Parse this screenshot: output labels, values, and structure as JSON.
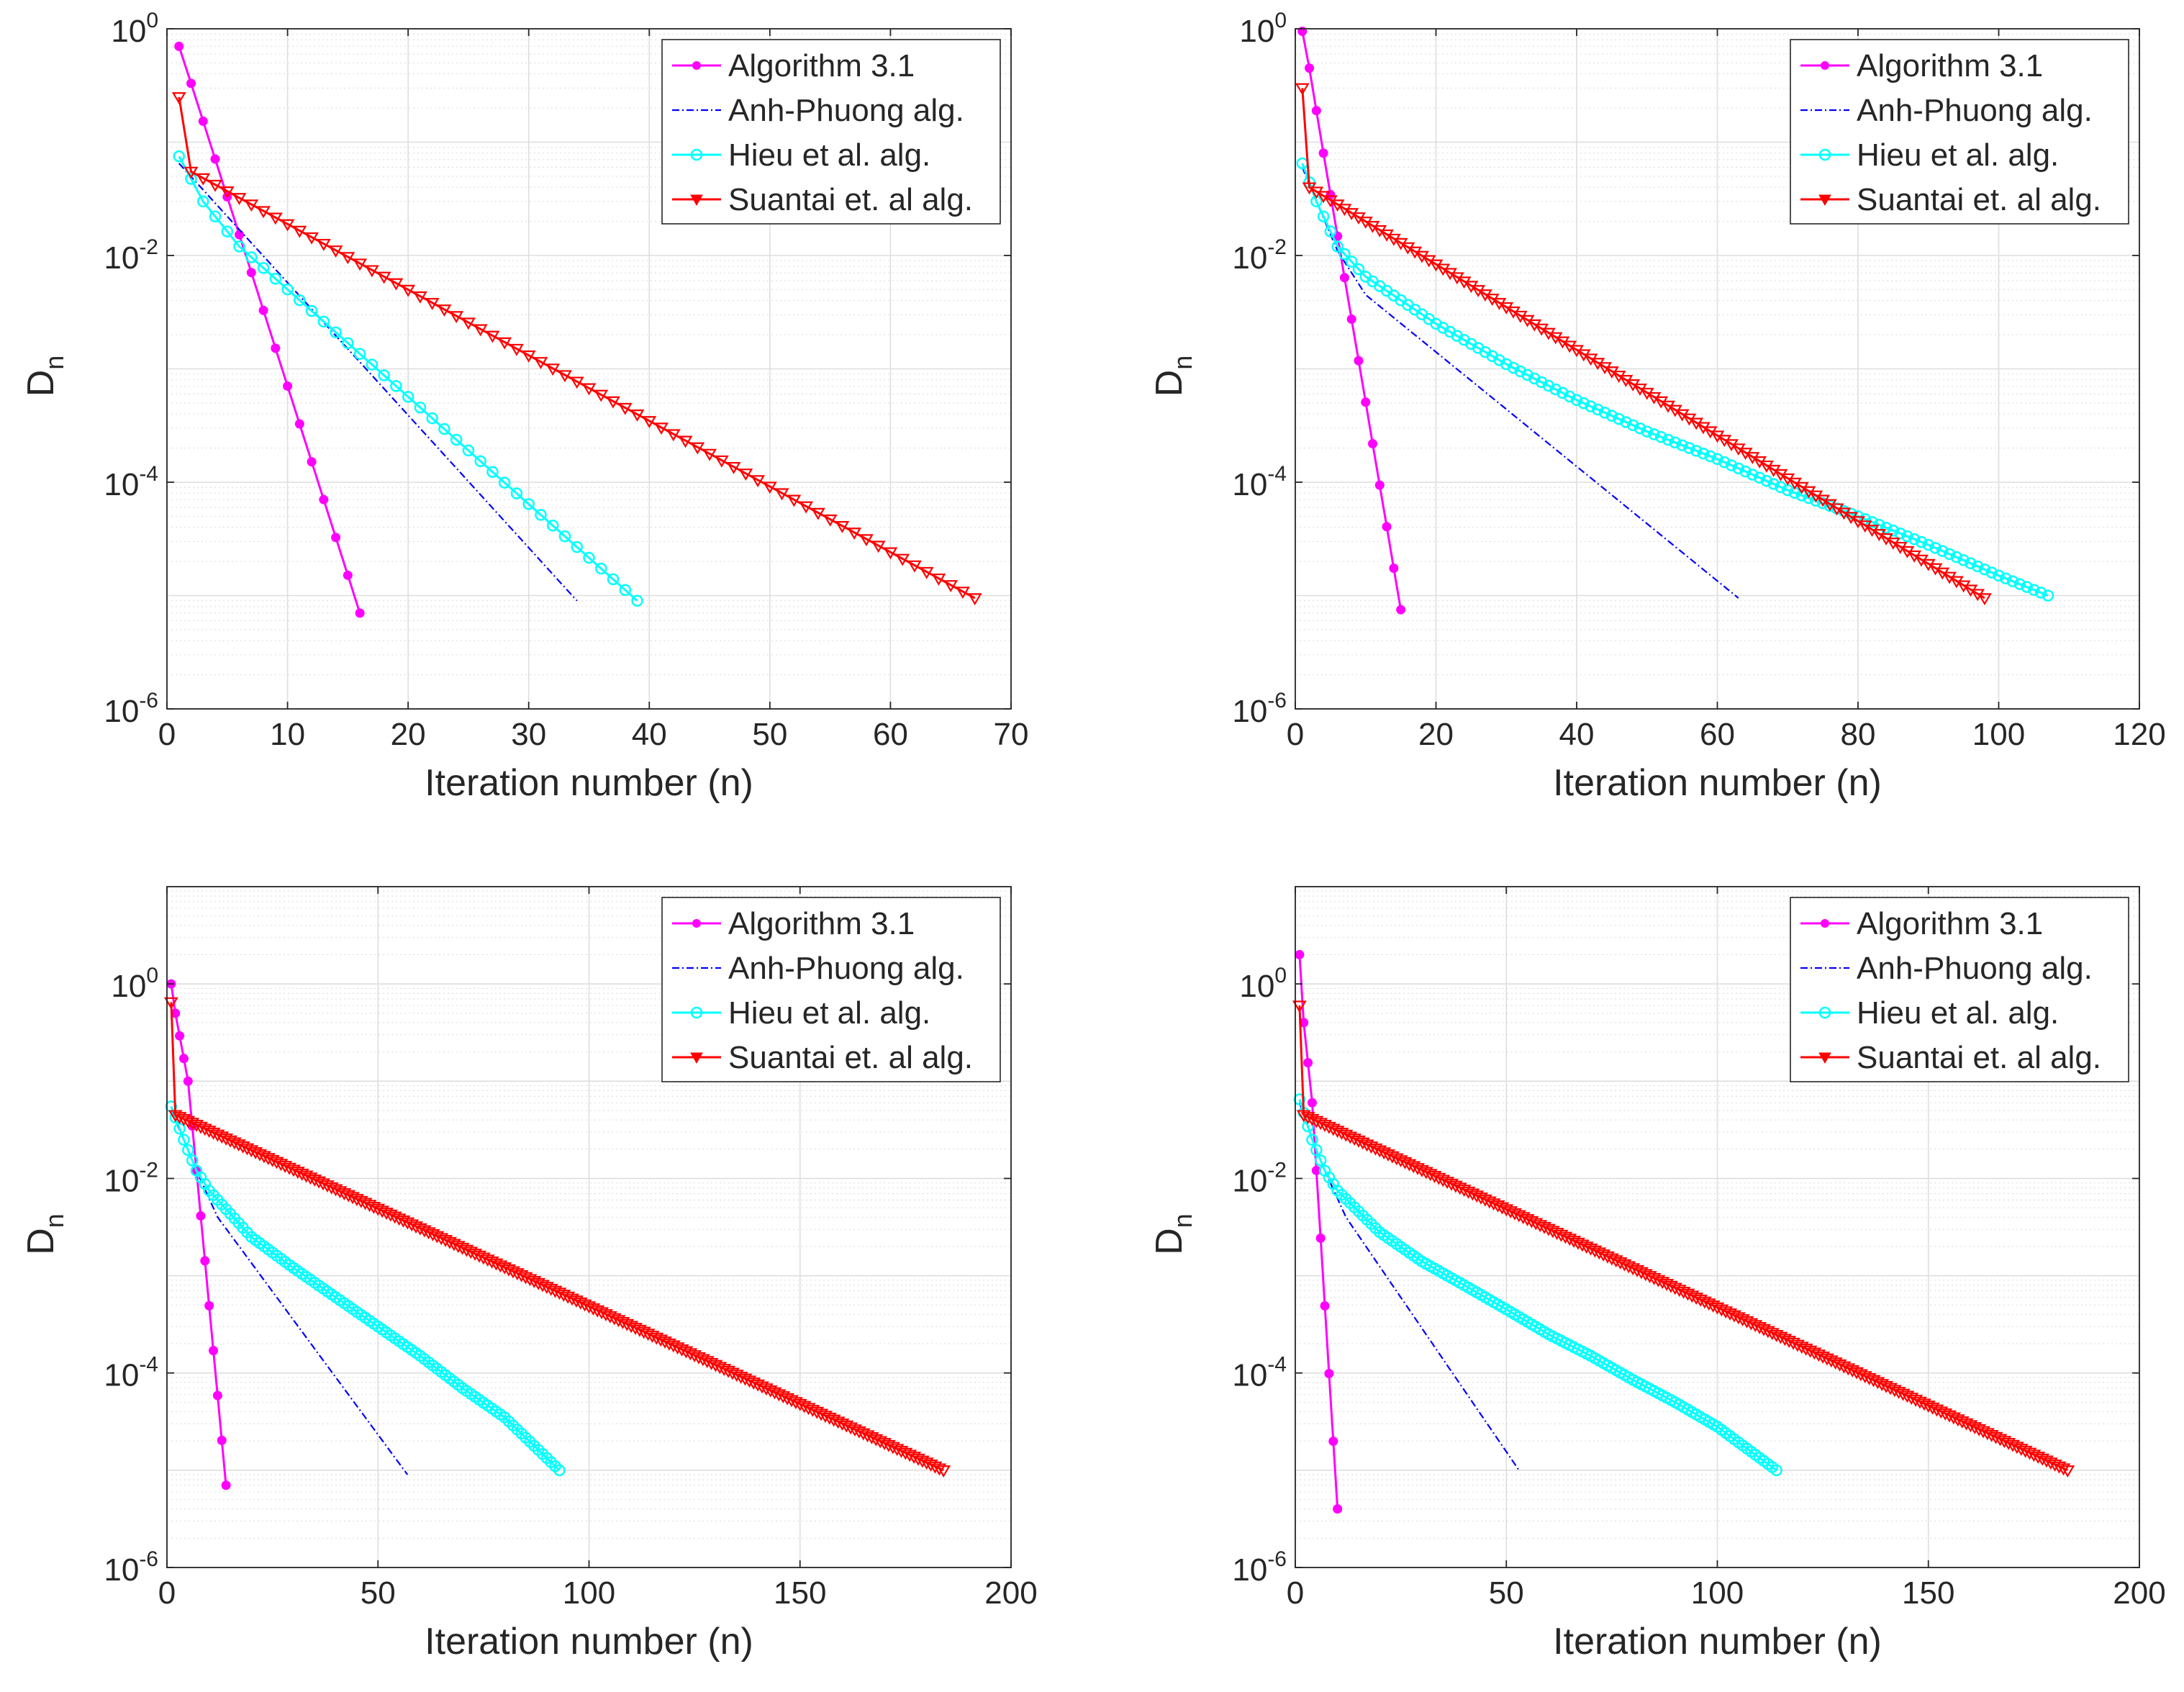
{
  "figure": {
    "panel_count": 4
  },
  "styles": {
    "Algorithm 3.1": {
      "color": "#ff00ff",
      "marker": "dot",
      "line": "solid"
    },
    "Anh-Phuong alg.": {
      "color": "#0000ff",
      "marker": "none",
      "line": "dashdot"
    },
    "Hieu et al. alg.": {
      "color": "#00ffff",
      "marker": "circle",
      "line": "solid"
    },
    "Suantai et. al alg.": {
      "color": "#ff0000",
      "marker": "triangle-down",
      "line": "solid"
    }
  },
  "chart_data": [
    {
      "type": "line",
      "yscale": "log",
      "xlabel": "Iteration number (n)",
      "ylabel": "D",
      "ylabel_sub": "n",
      "xlim": [
        0,
        70
      ],
      "ylim_exp": [
        -6,
        0
      ],
      "xticks": [
        "0",
        "10",
        "20",
        "30",
        "40",
        "50",
        "60",
        "70"
      ],
      "yticks": [
        {
          "base": "10",
          "exp": "0"
        },
        {
          "base": "10",
          "exp": "-2"
        },
        {
          "base": "10",
          "exp": "-4"
        },
        {
          "base": "10",
          "exp": "-6"
        }
      ],
      "ytick_exps": [
        0,
        -2,
        -4,
        -6
      ],
      "grid": true,
      "legend_position": "top-right",
      "series": [
        {
          "name": "Algorithm 3.1",
          "curve": [
            [
              1,
              0.7
            ],
            [
              2,
              0.33
            ],
            [
              16,
              7e-06
            ]
          ]
        },
        {
          "name": "Anh-Phuong alg.",
          "curve": [
            [
              1,
              0.065
            ],
            [
              34,
              9e-06
            ]
          ]
        },
        {
          "name": "Hieu et al. alg.",
          "curve": [
            [
              1,
              0.075
            ],
            [
              3,
              0.03
            ],
            [
              6,
              0.012
            ],
            [
              39,
              9e-06
            ]
          ]
        },
        {
          "name": "Suantai et. al alg.",
          "curve": [
            [
              1,
              0.25
            ],
            [
              2,
              0.055
            ],
            [
              67,
              9.5e-06
            ]
          ]
        }
      ]
    },
    {
      "type": "line",
      "yscale": "log",
      "xlabel": "Iteration number (n)",
      "ylabel": "D",
      "ylabel_sub": "n",
      "xlim": [
        0,
        120
      ],
      "ylim_exp": [
        -6,
        0
      ],
      "xticks": [
        "0",
        "20",
        "40",
        "60",
        "80",
        "100",
        "120"
      ],
      "yticks": [
        {
          "base": "10",
          "exp": "0"
        },
        {
          "base": "10",
          "exp": "-2"
        },
        {
          "base": "10",
          "exp": "-4"
        },
        {
          "base": "10",
          "exp": "-6"
        }
      ],
      "ytick_exps": [
        0,
        -2,
        -4,
        -6
      ],
      "grid": true,
      "legend_position": "top-right",
      "series": [
        {
          "name": "Algorithm 3.1",
          "curve": [
            [
              1,
              0.95
            ],
            [
              2,
              0.45
            ],
            [
              4,
              0.08
            ],
            [
              15,
              7.5e-06
            ]
          ]
        },
        {
          "name": "Anh-Phuong alg.",
          "curve": [
            [
              1,
              0.06
            ],
            [
              3,
              0.03
            ],
            [
              6,
              0.011
            ],
            [
              10,
              0.0045
            ],
            [
              63,
              9.5e-06
            ]
          ]
        },
        {
          "name": "Hieu et al. alg.",
          "curve": [
            [
              1,
              0.065
            ],
            [
              3,
              0.03
            ],
            [
              6,
              0.012
            ],
            [
              10,
              0.0065
            ],
            [
              20,
              0.0025
            ],
            [
              30,
              0.0011
            ],
            [
              40,
              0.00053
            ],
            [
              50,
              0.00028
            ],
            [
              60,
              0.00016
            ],
            [
              70,
              8.5e-05
            ],
            [
              80,
              5e-05
            ],
            [
              90,
              2.8e-05
            ],
            [
              100,
              1.5e-05
            ],
            [
              107,
              1e-05
            ]
          ]
        },
        {
          "name": "Suantai et. al alg.",
          "curve": [
            [
              1,
              0.3
            ],
            [
              2,
              0.04
            ],
            [
              98,
              9.5e-06
            ]
          ]
        }
      ]
    },
    {
      "type": "line",
      "yscale": "log",
      "xlabel": "Iteration number (n)",
      "ylabel": "D",
      "ylabel_sub": "n",
      "xlim": [
        0,
        200
      ],
      "ylim_exp": [
        -6,
        1
      ],
      "xticks": [
        "0",
        "50",
        "100",
        "150",
        "200"
      ],
      "yticks": [
        {
          "base": "10",
          "exp": "0"
        },
        {
          "base": "10",
          "exp": "-2"
        },
        {
          "base": "10",
          "exp": "-4"
        },
        {
          "base": "10",
          "exp": "-6"
        }
      ],
      "ytick_exps": [
        0,
        -2,
        -4,
        -6
      ],
      "grid": true,
      "legend_position": "top-right",
      "series": [
        {
          "name": "Algorithm 3.1",
          "curve": [
            [
              1,
              1.0
            ],
            [
              2,
              0.5
            ],
            [
              5,
              0.1
            ],
            [
              14,
              7e-06
            ]
          ]
        },
        {
          "name": "Anh-Phuong alg.",
          "curve": [
            [
              1,
              0.05
            ],
            [
              4,
              0.025
            ],
            [
              7,
              0.012
            ],
            [
              12,
              0.004
            ],
            [
              57,
              9e-06
            ]
          ]
        },
        {
          "name": "Hieu et al. alg.",
          "curve": [
            [
              1,
              0.055
            ],
            [
              4,
              0.025
            ],
            [
              7,
              0.012
            ],
            [
              10,
              0.0075
            ],
            [
              20,
              0.0025
            ],
            [
              30,
              0.0012
            ],
            [
              40,
              0.0006
            ],
            [
              50,
              0.0003
            ],
            [
              60,
              0.00015
            ],
            [
              70,
              7e-05
            ],
            [
              80,
              3.5e-05
            ],
            [
              93,
              1e-05
            ]
          ]
        },
        {
          "name": "Suantai et. al alg.",
          "curve": [
            [
              1,
              0.65
            ],
            [
              2,
              0.045
            ],
            [
              184,
              1e-05
            ]
          ]
        }
      ]
    },
    {
      "type": "line",
      "yscale": "log",
      "xlabel": "Iteration number (n)",
      "ylabel": "D",
      "ylabel_sub": "n",
      "xlim": [
        0,
        200
      ],
      "ylim_exp": [
        -6,
        1
      ],
      "xticks": [
        "0",
        "50",
        "100",
        "150",
        "200"
      ],
      "yticks": [
        {
          "base": "10",
          "exp": "0"
        },
        {
          "base": "10",
          "exp": "-2"
        },
        {
          "base": "10",
          "exp": "-4"
        },
        {
          "base": "10",
          "exp": "-6"
        }
      ],
      "ytick_exps": [
        0,
        -2,
        -4,
        -6
      ],
      "grid": true,
      "legend_position": "top-right",
      "series": [
        {
          "name": "Algorithm 3.1",
          "curve": [
            [
              1,
              2.0
            ],
            [
              2,
              0.4
            ],
            [
              4,
              0.06
            ],
            [
              10,
              4e-06
            ]
          ]
        },
        {
          "name": "Anh-Phuong alg.",
          "curve": [
            [
              1,
              0.06
            ],
            [
              4,
              0.025
            ],
            [
              7,
              0.012
            ],
            [
              12,
              0.004
            ],
            [
              53,
              1e-05
            ]
          ]
        },
        {
          "name": "Hieu et al. alg.",
          "curve": [
            [
              1,
              0.065
            ],
            [
              4,
              0.025
            ],
            [
              7,
              0.012
            ],
            [
              10,
              0.0075
            ],
            [
              20,
              0.0028
            ],
            [
              30,
              0.0014
            ],
            [
              40,
              0.0008
            ],
            [
              50,
              0.00045
            ],
            [
              60,
              0.00025
            ],
            [
              70,
              0.00015
            ],
            [
              80,
              8.5e-05
            ],
            [
              90,
              5e-05
            ],
            [
              100,
              2.8e-05
            ],
            [
              114,
              1e-05
            ]
          ]
        },
        {
          "name": "Suantai et. al alg.",
          "curve": [
            [
              1,
              0.6
            ],
            [
              2,
              0.045
            ],
            [
              183,
              1e-05
            ]
          ]
        }
      ]
    }
  ]
}
